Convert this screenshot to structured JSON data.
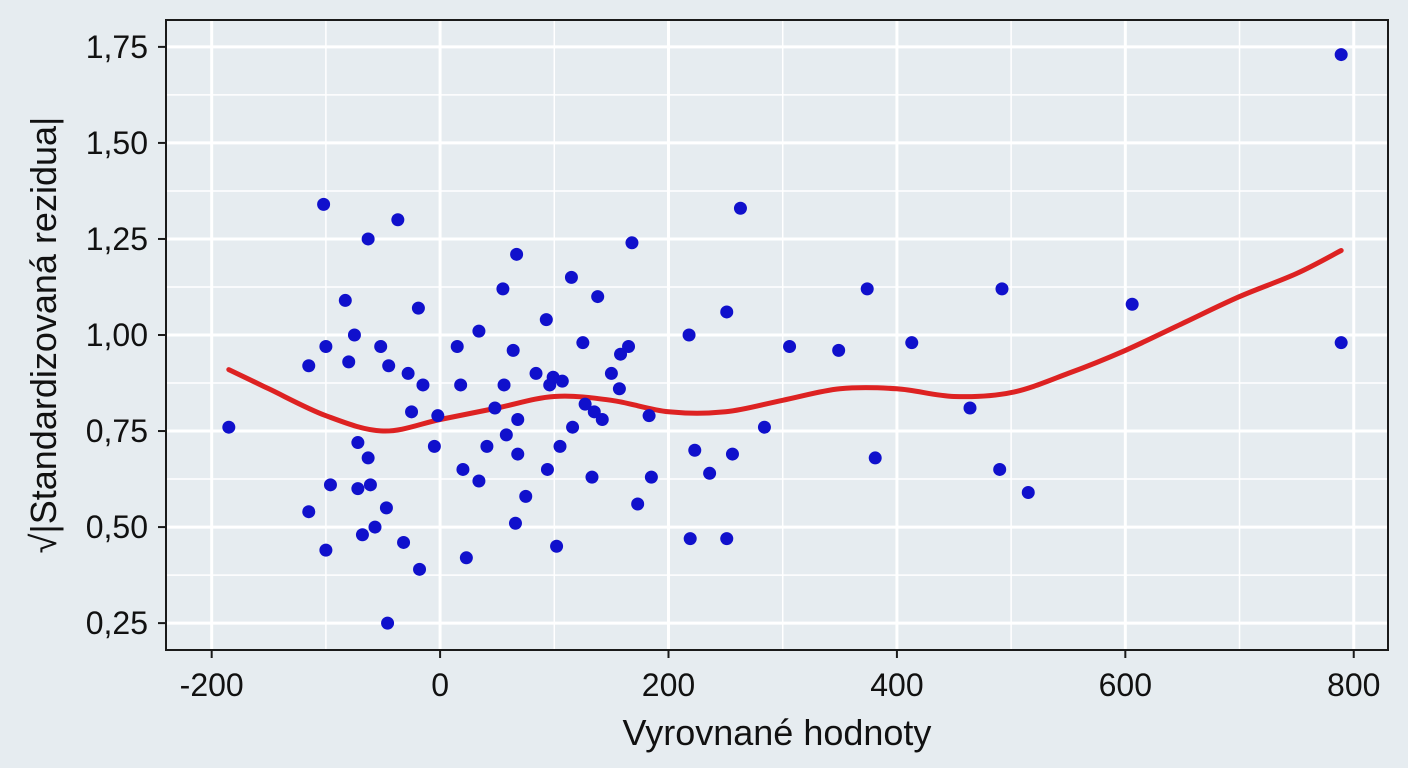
{
  "chart_data": {
    "type": "scatter",
    "xlabel": "Vyrovnané hodnoty",
    "ylabel": "√|Standardizovaná rezidua|",
    "xlim": [
      -240,
      830
    ],
    "ylim": [
      0.18,
      1.82
    ],
    "x_ticks": [
      -200,
      0,
      200,
      400,
      600,
      800
    ],
    "x_tick_labels": [
      "-200",
      "0",
      "200",
      "400",
      "600",
      "800"
    ],
    "y_ticks": [
      0.25,
      0.5,
      0.75,
      1.0,
      1.25,
      1.5,
      1.75
    ],
    "y_tick_labels": [
      "0,25",
      "0,50",
      "0,75",
      "1,00",
      "1,25",
      "1,50",
      "1,75"
    ],
    "grid": true,
    "colors": {
      "points": "#1010cc",
      "smoother": "#dd2222",
      "background": "#e6ecf0",
      "grid": "#ffffff"
    },
    "points": [
      [
        -185,
        0.76
      ],
      [
        -115,
        0.92
      ],
      [
        -115,
        0.54
      ],
      [
        -102,
        1.34
      ],
      [
        -100,
        0.97
      ],
      [
        -100,
        0.44
      ],
      [
        -96,
        0.61
      ],
      [
        -83,
        1.09
      ],
      [
        -80,
        0.93
      ],
      [
        -75,
        1.0
      ],
      [
        -72,
        0.72
      ],
      [
        -72,
        0.6
      ],
      [
        -68,
        0.48
      ],
      [
        -63,
        1.25
      ],
      [
        -63,
        0.68
      ],
      [
        -61,
        0.61
      ],
      [
        -57,
        0.5
      ],
      [
        -52,
        0.97
      ],
      [
        -47,
        0.55
      ],
      [
        -46,
        0.25
      ],
      [
        -45,
        0.92
      ],
      [
        -37,
        1.3
      ],
      [
        -32,
        0.46
      ],
      [
        -28,
        0.9
      ],
      [
        -25,
        0.8
      ],
      [
        -19,
        1.07
      ],
      [
        -18,
        0.39
      ],
      [
        -15,
        0.87
      ],
      [
        -5,
        0.71
      ],
      [
        -2,
        0.79
      ],
      [
        15,
        0.97
      ],
      [
        18,
        0.87
      ],
      [
        20,
        0.65
      ],
      [
        23,
        0.42
      ],
      [
        34,
        1.01
      ],
      [
        34,
        0.62
      ],
      [
        41,
        0.71
      ],
      [
        48,
        0.81
      ],
      [
        55,
        1.12
      ],
      [
        56,
        0.87
      ],
      [
        58,
        0.74
      ],
      [
        64,
        0.96
      ],
      [
        66,
        0.51
      ],
      [
        67,
        1.21
      ],
      [
        68,
        0.69
      ],
      [
        68,
        0.78
      ],
      [
        75,
        0.58
      ],
      [
        84,
        0.9
      ],
      [
        93,
        1.04
      ],
      [
        94,
        0.65
      ],
      [
        96,
        0.87
      ],
      [
        99,
        0.89
      ],
      [
        102,
        0.45
      ],
      [
        105,
        0.71
      ],
      [
        107,
        0.88
      ],
      [
        115,
        1.15
      ],
      [
        116,
        0.76
      ],
      [
        125,
        0.98
      ],
      [
        127,
        0.82
      ],
      [
        133,
        0.63
      ],
      [
        135,
        0.8
      ],
      [
        138,
        1.1
      ],
      [
        142,
        0.78
      ],
      [
        150,
        0.9
      ],
      [
        157,
        0.86
      ],
      [
        158,
        0.95
      ],
      [
        165,
        0.97
      ],
      [
        168,
        1.24
      ],
      [
        173,
        0.56
      ],
      [
        183,
        0.79
      ],
      [
        185,
        0.63
      ],
      [
        218,
        1.0
      ],
      [
        219,
        0.47
      ],
      [
        223,
        0.7
      ],
      [
        236,
        0.64
      ],
      [
        251,
        1.06
      ],
      [
        251,
        0.47
      ],
      [
        256,
        0.69
      ],
      [
        263,
        1.33
      ],
      [
        284,
        0.76
      ],
      [
        306,
        0.97
      ],
      [
        349,
        0.96
      ],
      [
        374,
        1.12
      ],
      [
        381,
        0.68
      ],
      [
        413,
        0.98
      ],
      [
        464,
        0.81
      ],
      [
        490,
        0.65
      ],
      [
        492,
        1.12
      ],
      [
        515,
        0.59
      ],
      [
        606,
        1.08
      ],
      [
        789,
        1.73
      ],
      [
        789,
        0.98
      ]
    ],
    "smoother": [
      [
        -185,
        0.91
      ],
      [
        -150,
        0.86
      ],
      [
        -100,
        0.79
      ],
      [
        -50,
        0.75
      ],
      [
        0,
        0.78
      ],
      [
        50,
        0.81
      ],
      [
        100,
        0.84
      ],
      [
        150,
        0.83
      ],
      [
        200,
        0.8
      ],
      [
        250,
        0.8
      ],
      [
        300,
        0.83
      ],
      [
        350,
        0.86
      ],
      [
        400,
        0.86
      ],
      [
        450,
        0.84
      ],
      [
        500,
        0.85
      ],
      [
        550,
        0.9
      ],
      [
        600,
        0.96
      ],
      [
        650,
        1.03
      ],
      [
        700,
        1.1
      ],
      [
        750,
        1.16
      ],
      [
        789,
        1.22
      ]
    ]
  }
}
